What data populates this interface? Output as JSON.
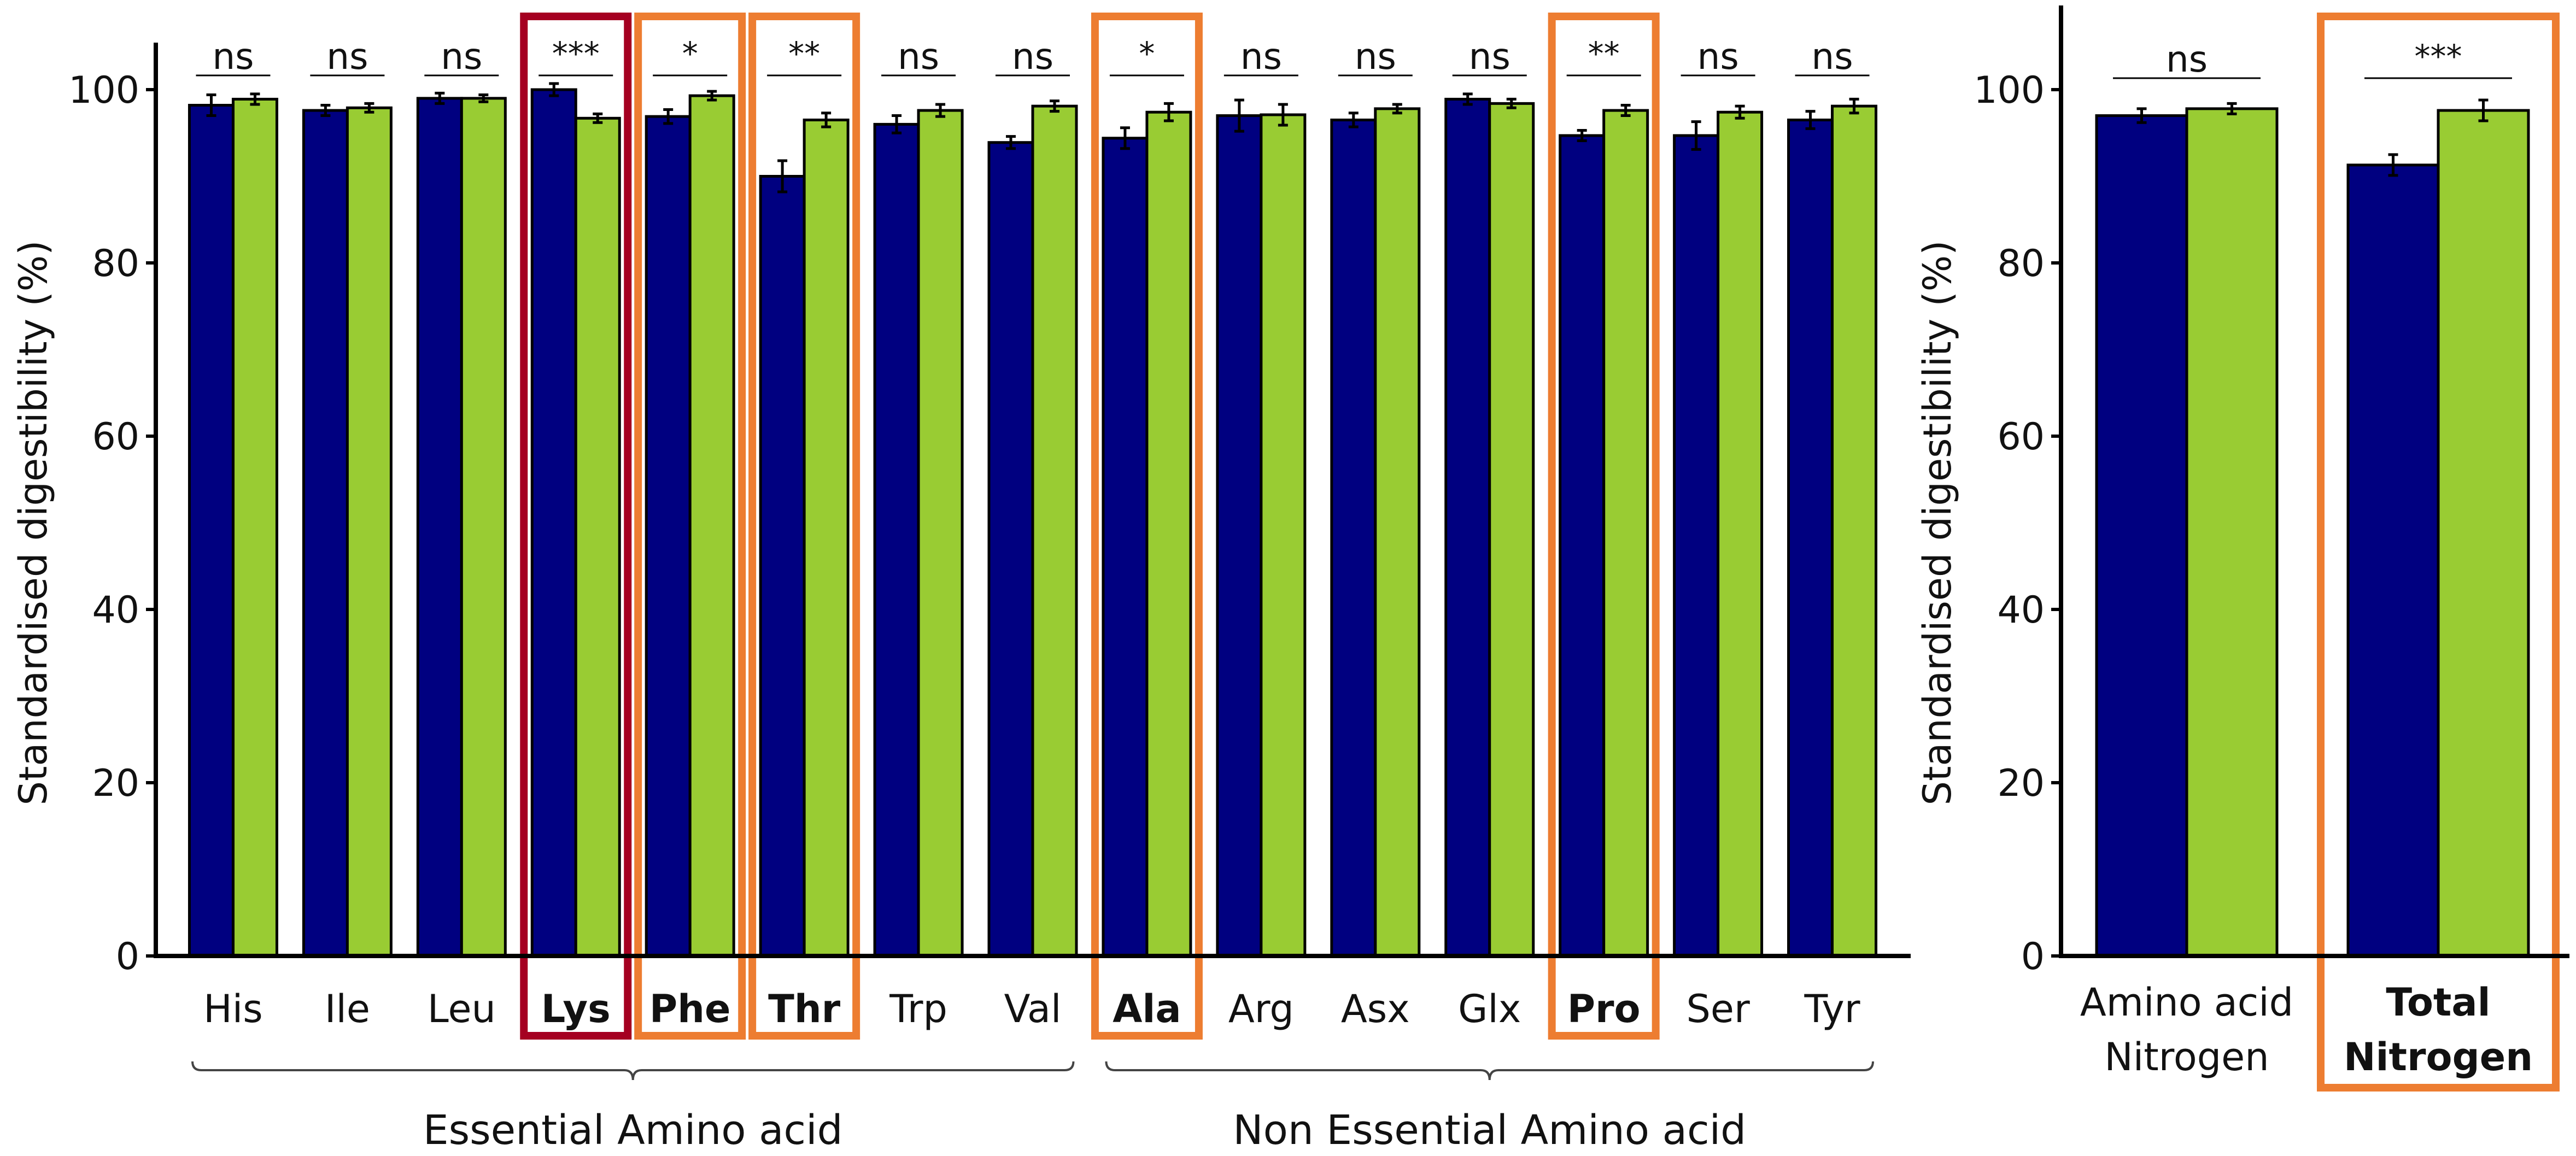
{
  "colors": {
    "series_a": "#000080",
    "series_b": "#99cc33",
    "highlight_orange": "#ed7d31",
    "highlight_red": "#a50021",
    "axis": "#000000"
  },
  "chart_data": [
    {
      "type": "bar",
      "title": "",
      "xlabel": "",
      "ylabel": "Standardised digestibility (%)",
      "ylim": [
        0,
        100
      ],
      "yticks": [
        0,
        20,
        40,
        60,
        80,
        100
      ],
      "grid": false,
      "legend": "none",
      "categories": [
        "His",
        "Ile",
        "Leu",
        "Lys",
        "Phe",
        "Thr",
        "Trp",
        "Val",
        "Ala",
        "Arg",
        "Asx",
        "Glx",
        "Pro",
        "Ser",
        "Tyr"
      ],
      "bold_categories": [
        "Lys",
        "Phe",
        "Thr",
        "Ala",
        "Pro"
      ],
      "series": [
        {
          "values": [
            98.2,
            97.6,
            99.0,
            100.0,
            96.9,
            90.0,
            96.0,
            93.9,
            94.4,
            97.0,
            96.5,
            98.9,
            94.7,
            94.7,
            96.5
          ],
          "errors": [
            1.2,
            0.6,
            0.6,
            0.7,
            0.8,
            1.8,
            1.0,
            0.7,
            1.2,
            1.8,
            0.8,
            0.6,
            0.6,
            1.6,
            1.0
          ]
        },
        {
          "values": [
            98.9,
            97.9,
            99.0,
            96.7,
            99.3,
            96.5,
            97.6,
            98.1,
            97.4,
            97.1,
            97.8,
            98.4,
            97.6,
            97.4,
            98.1
          ],
          "errors": [
            0.6,
            0.5,
            0.4,
            0.5,
            0.5,
            0.8,
            0.7,
            0.6,
            1.0,
            1.2,
            0.5,
            0.5,
            0.6,
            0.7,
            0.8
          ]
        }
      ],
      "significance": [
        "ns",
        "ns",
        "ns",
        "***",
        "*",
        "**",
        "ns",
        "ns",
        "*",
        "ns",
        "ns",
        "ns",
        "**",
        "ns",
        "ns"
      ],
      "highlight_boxes": [
        {
          "category": "Lys",
          "color": "#a50021"
        },
        {
          "category": "Phe",
          "color": "#ed7d31"
        },
        {
          "category": "Thr",
          "color": "#ed7d31"
        },
        {
          "category": "Ala",
          "color": "#ed7d31"
        },
        {
          "category": "Pro",
          "color": "#ed7d31"
        }
      ],
      "groups": [
        {
          "label": "Essential Amino acid",
          "categories": [
            "His",
            "Ile",
            "Leu",
            "Lys",
            "Phe",
            "Thr",
            "Trp",
            "Val"
          ]
        },
        {
          "label": "Non Essential Amino acid",
          "categories": [
            "Ala",
            "Arg",
            "Asx",
            "Glx",
            "Pro",
            "Ser",
            "Tyr"
          ]
        }
      ]
    },
    {
      "type": "bar",
      "title": "",
      "xlabel": "",
      "ylabel": "Standardised digestibility (%)",
      "ylim": [
        0,
        100
      ],
      "yticks": [
        0,
        20,
        40,
        60,
        80,
        100
      ],
      "grid": false,
      "legend": "none",
      "categories": [
        [
          "Amino acid",
          "Nitrogen"
        ],
        [
          "Total",
          "Nitrogen"
        ]
      ],
      "bold_categories": [
        "Total Nitrogen"
      ],
      "series": [
        {
          "values": [
            97.0,
            91.3
          ],
          "errors": [
            0.8,
            1.2
          ]
        },
        {
          "values": [
            97.8,
            97.6
          ],
          "errors": [
            0.6,
            1.2
          ]
        }
      ],
      "significance": [
        "ns",
        "***"
      ],
      "highlight_boxes": [
        {
          "category": "Total Nitrogen",
          "color": "#ed7d31"
        }
      ]
    }
  ]
}
